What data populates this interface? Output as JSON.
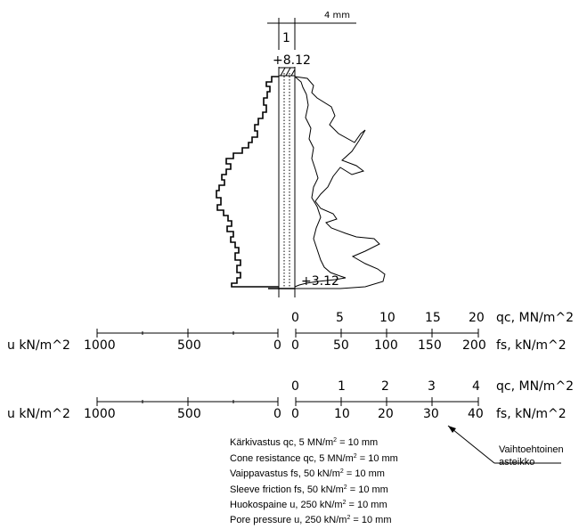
{
  "header": {
    "width_label": "4 mm",
    "column_label": "1",
    "top_level": "+8.12",
    "bottom_level": "+3.12"
  },
  "scale_a": {
    "qc_ticks": [
      "0",
      "5",
      "10",
      "15",
      "20"
    ],
    "qc_unit": "qc, MN/m^2",
    "u_label": "u kN/m^2",
    "u_ticks": [
      "1000",
      "500",
      "0"
    ],
    "fs_ticks": [
      "0",
      "50",
      "100",
      "150",
      "200"
    ],
    "fs_unit": "fs, kN/m^2"
  },
  "scale_b": {
    "qc_ticks": [
      "0",
      "1",
      "2",
      "3",
      "4"
    ],
    "qc_unit": "qc, MN/m^2",
    "u_label": "u kN/m^2",
    "u_ticks": [
      "1000",
      "500",
      "0"
    ],
    "fs_ticks": [
      "0",
      "10",
      "20",
      "30",
      "40"
    ],
    "fs_unit": "fs, kN/m^2"
  },
  "callout": {
    "line1": "Vaihtoehtoinen",
    "line2": "asteikko"
  },
  "legend": [
    {
      "text": "Kärkivastus qc, 5 MN/m",
      "sup": "2",
      "tail": " = 10 mm"
    },
    {
      "text": "Cone resistance qc, 5 MN/m",
      "sup": "2",
      "tail": " = 10 mm"
    },
    {
      "text": "Vaippavastus fs, 50 kN/m",
      "sup": "2",
      "tail": " = 10 mm"
    },
    {
      "text": "Sleeve friction fs, 50 kN/m",
      "sup": "2",
      "tail": " = 10 mm"
    },
    {
      "text": "Huokospaine u, 250 kN/m",
      "sup": "2",
      "tail": " = 10 mm"
    },
    {
      "text": "Pore pressure u, 250 kN/m",
      "sup": "2",
      "tail": " = 10 mm"
    }
  ]
}
